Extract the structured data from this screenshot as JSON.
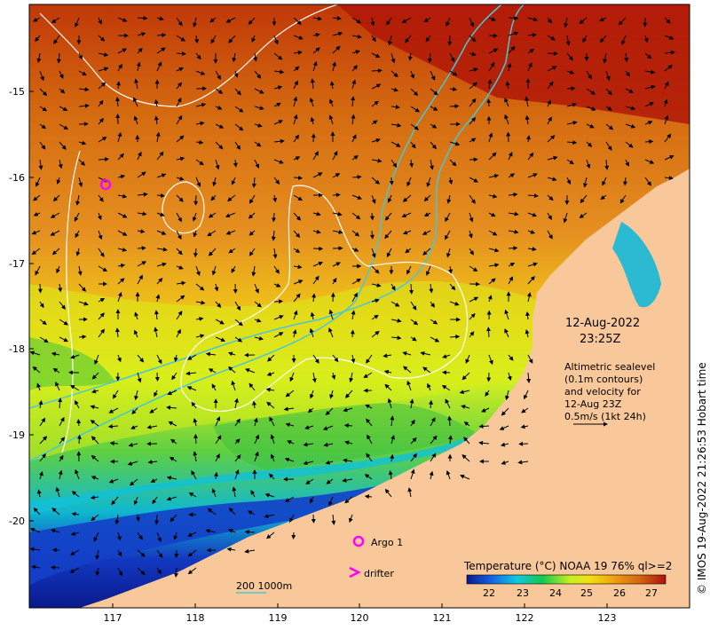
{
  "map": {
    "lat_ticks": [
      "-15",
      "-16",
      "-17",
      "-18",
      "-19",
      "-20"
    ],
    "lon_ticks": [
      "117",
      "118",
      "119",
      "120",
      "121",
      "122",
      "123"
    ]
  },
  "annotation": {
    "date": "12-Aug-2022",
    "time": "23:25Z",
    "lines": [
      "Altimetric sealevel",
      "(0.1m contours)",
      "and velocity for",
      "12-Aug 23Z",
      "0.5m/s (1kt 24h)"
    ]
  },
  "legend": {
    "argo_label": "Argo 1",
    "drifter_label": "drifter",
    "isobath_label": "200  1000m"
  },
  "colorbar": {
    "title": "Temperature (°C) NOAA 19 76% ql>=2",
    "ticks": [
      "22",
      "23",
      "24",
      "25",
      "26",
      "27"
    ]
  },
  "credit": "© IMOS 19-Aug-2022 21:26:53 Hobart time",
  "colors": {
    "land": "#f8c89a",
    "isobath": "#46c8d8",
    "marker": "#ff00ff"
  }
}
